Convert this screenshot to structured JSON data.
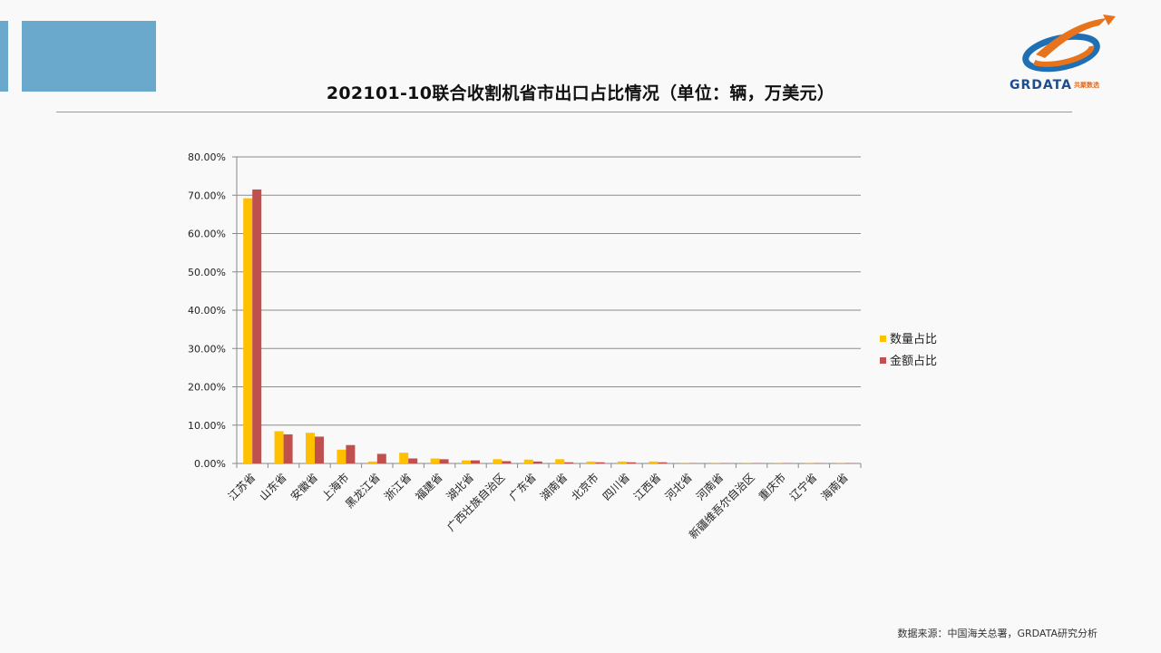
{
  "page": {
    "title": "202101-10联合收割机省市出口占比情况（单位：辆，万美元）",
    "source": "数据来源：中国海关总署，GRDATA研究分析",
    "logo": {
      "name": "GRDATA",
      "subtitle": "共聚数选"
    }
  },
  "chart_data": {
    "type": "bar",
    "title": "",
    "xlabel": "",
    "ylabel": "",
    "ylim": [
      0,
      80
    ],
    "yticks": [
      "0.00%",
      "10.00%",
      "20.00%",
      "30.00%",
      "40.00%",
      "50.00%",
      "60.00%",
      "70.00%",
      "80.00%"
    ],
    "grid": true,
    "legend_position": "right",
    "categories": [
      "江苏省",
      "山东省",
      "安徽省",
      "上海市",
      "黑龙江省",
      "浙江省",
      "福建省",
      "湖北省",
      "广西壮族自治区",
      "广东省",
      "湖南省",
      "北京市",
      "四川省",
      "江西省",
      "河北省",
      "河南省",
      "新疆维吾尔自治区",
      "重庆市",
      "辽宁省",
      "海南省"
    ],
    "series": [
      {
        "name": "数量占比",
        "color": "#ffc000",
        "values": [
          69.2,
          8.4,
          8.0,
          3.6,
          0.5,
          2.8,
          1.3,
          0.8,
          1.1,
          1.0,
          1.1,
          0.5,
          0.5,
          0.5,
          0.05,
          0.05,
          0.05,
          0.05,
          0.05,
          0.05
        ]
      },
      {
        "name": "金额占比",
        "color": "#c0504d",
        "values": [
          71.5,
          7.6,
          7.0,
          4.8,
          2.5,
          1.3,
          1.1,
          0.8,
          0.6,
          0.5,
          0.3,
          0.3,
          0.3,
          0.3,
          0.05,
          0.05,
          0.05,
          0.05,
          0.05,
          0.05
        ]
      }
    ]
  }
}
